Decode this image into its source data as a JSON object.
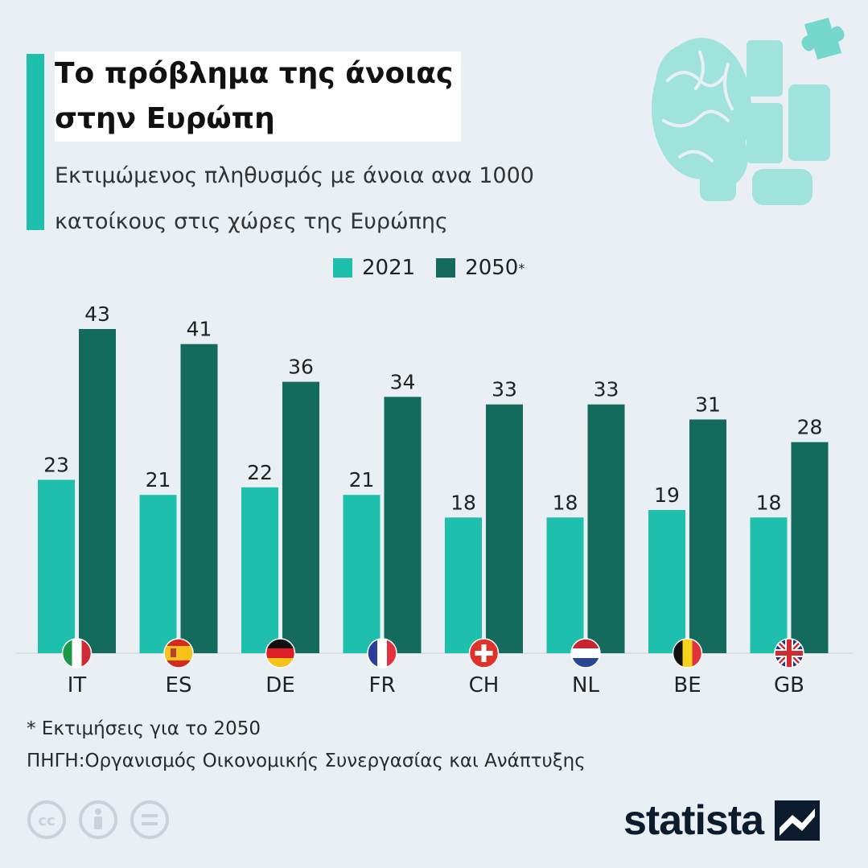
{
  "title_lines": [
    "Το πρόβλημα της άνοιας",
    "στην Ευρώπη"
  ],
  "subtitle_lines": [
    "Εκτιμώμενος πληθυσμός με άνοια ανα 1000",
    "κατοίκους στις χώρες της Ευρώπης"
  ],
  "legend": [
    {
      "label": "2021",
      "sup": "",
      "color": "#1ec0ad"
    },
    {
      "label": "2050",
      "sup": "*",
      "color": "#146b5d"
    }
  ],
  "footnote": "* Εκτιμήσεις για το 2050",
  "source": "ΠΗΓΗ:Οργανισμός Οικονομικής Συνεργασίας και Ανάπτυξης",
  "brand": "statista",
  "icons": [
    "brain-puzzle-icon",
    "cc-icon",
    "attribution-icon",
    "no-derivatives-icon",
    "statista-logo-icon"
  ],
  "chart_data": {
    "type": "bar",
    "categories": [
      "IT",
      "ES",
      "DE",
      "FR",
      "CH",
      "NL",
      "BE",
      "GB"
    ],
    "flags": [
      "italy-flag-icon",
      "spain-flag-icon",
      "germany-flag-icon",
      "france-flag-icon",
      "switzerland-flag-icon",
      "netherlands-flag-icon",
      "belgium-flag-icon",
      "united-kingdom-flag-icon"
    ],
    "series": [
      {
        "name": "2021",
        "color": "#1ec0ad",
        "values": [
          23,
          21,
          22,
          21,
          18,
          18,
          19,
          18
        ]
      },
      {
        "name": "2050*",
        "color": "#146b5d",
        "values": [
          43,
          41,
          36,
          34,
          33,
          33,
          31,
          28
        ]
      }
    ],
    "ylim": [
      0,
      43
    ],
    "grid": false,
    "data_labels": true,
    "legend_position": "top-center",
    "xlabel": "",
    "ylabel": ""
  }
}
